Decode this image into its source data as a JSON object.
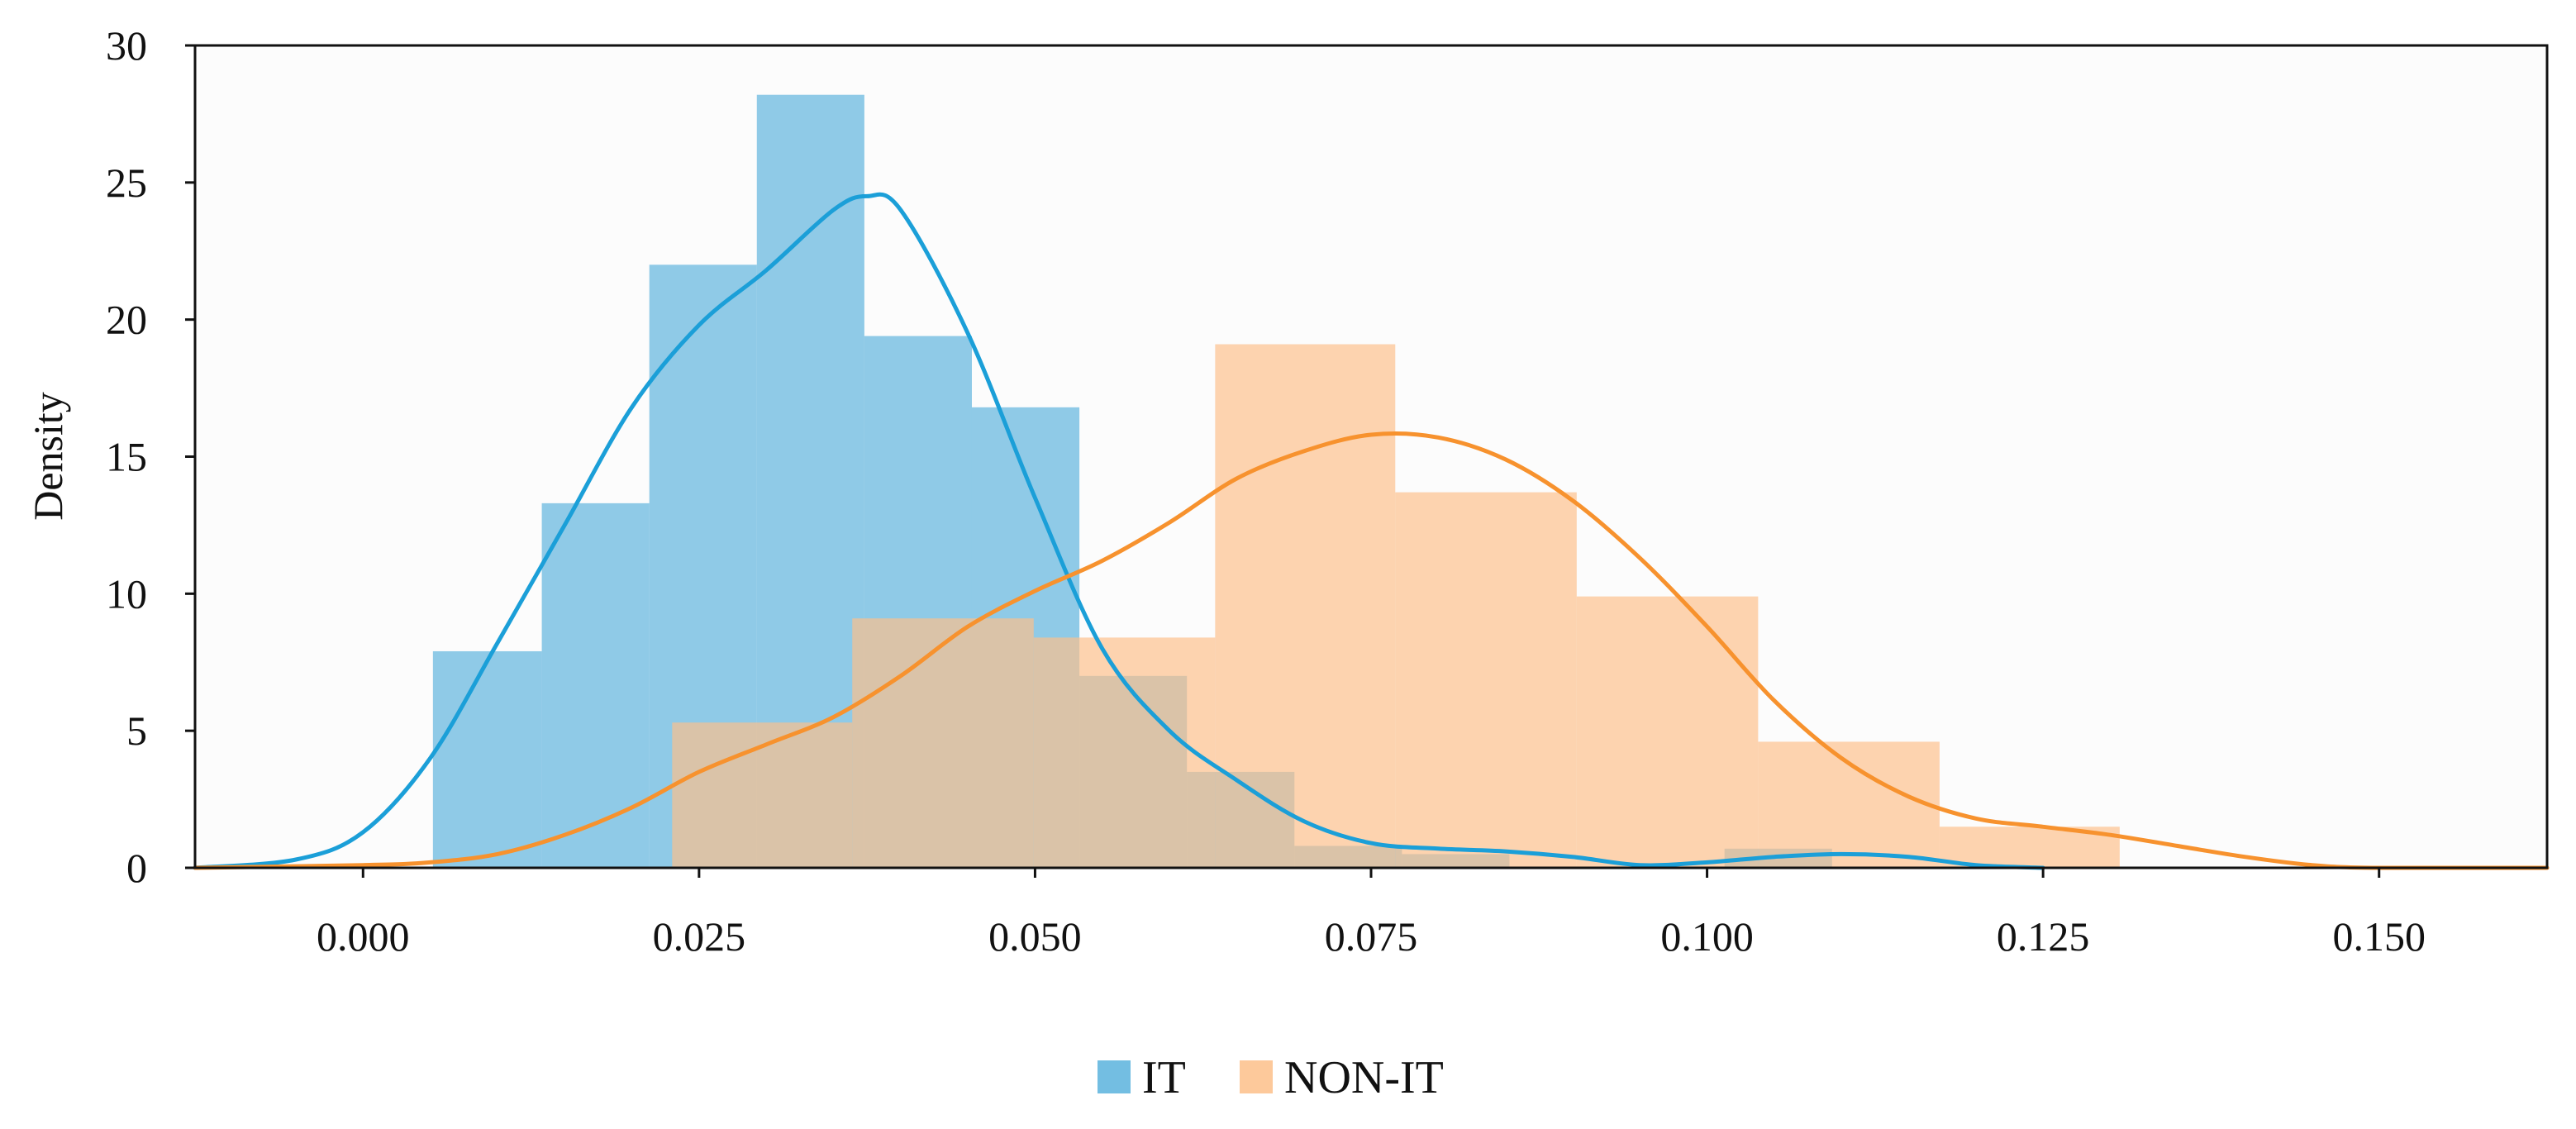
{
  "chart_data": {
    "type": "histogram",
    "title": "",
    "xlabel": "",
    "ylabel": "Density",
    "xlim": [
      -0.0125,
      0.1625
    ],
    "ylim": [
      0,
      30
    ],
    "xticks": [
      "0.000",
      "0.025",
      "0.050",
      "0.075",
      "0.100",
      "0.125",
      "0.150"
    ],
    "yticks": [
      "0",
      "5",
      "10",
      "15",
      "20",
      "25",
      "30"
    ],
    "grid": false,
    "legend_position": "bottom-center",
    "series": [
      {
        "name": "IT",
        "color": "#5BB3DD",
        "kde_color": "#1B9FD8",
        "bins": [
          {
            "x0": 0.0052,
            "x1": 0.0133,
            "density": 7.9
          },
          {
            "x0": 0.0133,
            "x1": 0.0213,
            "density": 13.3
          },
          {
            "x0": 0.0213,
            "x1": 0.0293,
            "density": 22.0
          },
          {
            "x0": 0.0293,
            "x1": 0.0373,
            "density": 28.2
          },
          {
            "x0": 0.0373,
            "x1": 0.0453,
            "density": 19.4
          },
          {
            "x0": 0.0453,
            "x1": 0.0533,
            "density": 16.8
          },
          {
            "x0": 0.0533,
            "x1": 0.0613,
            "density": 7.0
          },
          {
            "x0": 0.0613,
            "x1": 0.0693,
            "density": 3.5
          },
          {
            "x0": 0.0693,
            "x1": 0.0773,
            "density": 0.8
          },
          {
            "x0": 0.0773,
            "x1": 0.0853,
            "density": 0.5
          },
          {
            "x0": 0.0853,
            "x1": 0.0933,
            "density": 0.0
          },
          {
            "x0": 0.0933,
            "x1": 0.1013,
            "density": 0.0
          },
          {
            "x0": 0.1013,
            "x1": 0.1093,
            "density": 0.7
          }
        ],
        "kde": [
          [
            -0.0125,
            0.0
          ],
          [
            -0.005,
            0.3
          ],
          [
            0.0,
            1.3
          ],
          [
            0.005,
            4.0
          ],
          [
            0.01,
            8.2
          ],
          [
            0.015,
            12.5
          ],
          [
            0.02,
            16.8
          ],
          [
            0.025,
            19.8
          ],
          [
            0.03,
            21.8
          ],
          [
            0.035,
            24.0
          ],
          [
            0.0375,
            24.5
          ],
          [
            0.04,
            24.0
          ],
          [
            0.045,
            19.5
          ],
          [
            0.05,
            13.5
          ],
          [
            0.055,
            8.0
          ],
          [
            0.06,
            5.0
          ],
          [
            0.065,
            3.2
          ],
          [
            0.07,
            1.7
          ],
          [
            0.075,
            0.9
          ],
          [
            0.08,
            0.7
          ],
          [
            0.085,
            0.6
          ],
          [
            0.09,
            0.4
          ],
          [
            0.095,
            0.1
          ],
          [
            0.1,
            0.2
          ],
          [
            0.105,
            0.4
          ],
          [
            0.11,
            0.5
          ],
          [
            0.115,
            0.4
          ],
          [
            0.12,
            0.1
          ],
          [
            0.125,
            0.0
          ]
        ]
      },
      {
        "name": "NON-IT",
        "color": "#FDBF8A",
        "kde_color": "#F7922E",
        "bins": [
          {
            "x0": 0.023,
            "x1": 0.0364,
            "density": 5.3
          },
          {
            "x0": 0.0364,
            "x1": 0.0499,
            "density": 9.1
          },
          {
            "x0": 0.0499,
            "x1": 0.0634,
            "density": 8.4
          },
          {
            "x0": 0.0634,
            "x1": 0.0768,
            "density": 19.1
          },
          {
            "x0": 0.0768,
            "x1": 0.0903,
            "density": 13.7
          },
          {
            "x0": 0.0903,
            "x1": 0.1038,
            "density": 9.9
          },
          {
            "x0": 0.1038,
            "x1": 0.1173,
            "density": 4.6
          },
          {
            "x0": 0.1173,
            "x1": 0.1307,
            "density": 1.5
          }
        ],
        "kde": [
          [
            -0.0125,
            0.0
          ],
          [
            0.0,
            0.1
          ],
          [
            0.005,
            0.2
          ],
          [
            0.01,
            0.5
          ],
          [
            0.015,
            1.2
          ],
          [
            0.02,
            2.2
          ],
          [
            0.025,
            3.5
          ],
          [
            0.03,
            4.5
          ],
          [
            0.035,
            5.5
          ],
          [
            0.04,
            7.0
          ],
          [
            0.045,
            8.8
          ],
          [
            0.05,
            10.1
          ],
          [
            0.055,
            11.2
          ],
          [
            0.06,
            12.6
          ],
          [
            0.065,
            14.2
          ],
          [
            0.07,
            15.2
          ],
          [
            0.075,
            15.8
          ],
          [
            0.08,
            15.7
          ],
          [
            0.085,
            14.9
          ],
          [
            0.09,
            13.4
          ],
          [
            0.095,
            11.3
          ],
          [
            0.1,
            8.8
          ],
          [
            0.105,
            6.1
          ],
          [
            0.11,
            4.0
          ],
          [
            0.115,
            2.6
          ],
          [
            0.12,
            1.8
          ],
          [
            0.125,
            1.5
          ],
          [
            0.13,
            1.2
          ],
          [
            0.135,
            0.8
          ],
          [
            0.14,
            0.4
          ],
          [
            0.145,
            0.1
          ],
          [
            0.15,
            0.0
          ],
          [
            0.1625,
            0.0
          ]
        ]
      }
    ]
  }
}
